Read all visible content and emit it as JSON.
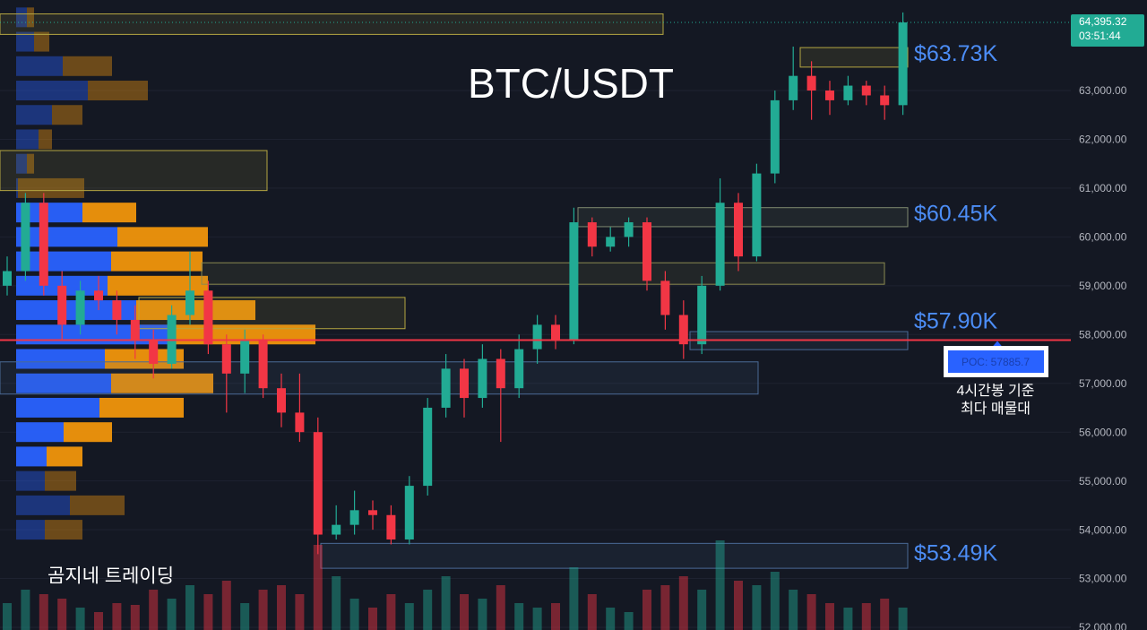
{
  "chart_data": {
    "type": "candlestick",
    "title": "BTC/USDT",
    "watermark": "곰지네 트레이딩",
    "annotation": "4시간봉 기준\n최다 매물대",
    "up_color": "#22ab94",
    "down_color": "#f23645",
    "ylim": [
      51945,
      64855
    ],
    "yticks": [
      {
        "value": 52000,
        "label": "52,000.00"
      },
      {
        "value": 53000,
        "label": "53,000.00"
      },
      {
        "value": 54000,
        "label": "54,000.00"
      },
      {
        "value": 55000,
        "label": "55,000.00"
      },
      {
        "value": 56000,
        "label": "56,000.00"
      },
      {
        "value": 57000,
        "label": "57,000.00"
      },
      {
        "value": 58000,
        "label": "58,000.00"
      },
      {
        "value": 59000,
        "label": "59,000.00"
      },
      {
        "value": 60000,
        "label": "60,000.00"
      },
      {
        "value": 61000,
        "label": "61,000.00"
      },
      {
        "value": 62000,
        "label": "62,000.00"
      },
      {
        "value": 63000,
        "label": "63,000.00"
      }
    ],
    "last_price": {
      "value": 64395.32,
      "label": "64,395.32"
    },
    "countdown": "03:51:44",
    "poc": {
      "value": 57885.7,
      "label": "POC: 57885.7"
    },
    "levels": [
      {
        "value": 63730,
        "label": "$63.73K"
      },
      {
        "value": 60450,
        "label": "$60.45K"
      },
      {
        "value": 57900,
        "label": "$57.90K"
      },
      {
        "value": 53490,
        "label": "$53.49K"
      }
    ],
    "zones": [
      {
        "low": 64150,
        "high": 64570,
        "color": "#b5a642"
      },
      {
        "low": 63480,
        "high": 63880,
        "color": "#b5a642"
      },
      {
        "low": 60950,
        "high": 61770,
        "color": "#b5a642"
      },
      {
        "low": 60210,
        "high": 60600,
        "color": "#7f8a70"
      },
      {
        "low": 59030,
        "high": 59470,
        "color": "#8a8a50"
      },
      {
        "low": 58120,
        "high": 58760,
        "color": "#b5a642"
      },
      {
        "low": 57690,
        "high": 58060,
        "color": "#4a6a96"
      },
      {
        "low": 56780,
        "high": 57440,
        "color": "#4a6a96"
      },
      {
        "low": 53210,
        "high": 53720,
        "color": "#4a6a96"
      }
    ],
    "open": [
      59000,
      59300,
      60700,
      59000,
      58200,
      58900,
      58700,
      58300,
      57900,
      57400,
      58400,
      58900,
      57800,
      57200,
      57900,
      56900,
      56400,
      56000,
      53900,
      54100,
      54400,
      54300,
      53800,
      54900,
      56500,
      57300,
      56700,
      57500,
      56900,
      57700,
      58200,
      57900,
      60300,
      59800,
      60000,
      60300,
      59100,
      58400,
      57800,
      59000,
      60700,
      59600,
      61300,
      62800,
      63300,
      63000,
      62800,
      63100,
      62900,
      62700
    ],
    "high": [
      59600,
      60900,
      60900,
      59300,
      59100,
      59200,
      58900,
      58600,
      58100,
      58600,
      59700,
      59100,
      58000,
      58100,
      58000,
      57200,
      57200,
      56300,
      54500,
      54800,
      54600,
      54500,
      55100,
      56700,
      57600,
      57500,
      57800,
      57700,
      58000,
      58400,
      58400,
      60600,
      60400,
      60200,
      60400,
      60400,
      59300,
      58700,
      59200,
      61200,
      60900,
      61500,
      63000,
      63900,
      63600,
      63200,
      63300,
      63200,
      63100,
      64600
    ],
    "low": [
      58800,
      59100,
      58800,
      57900,
      58000,
      58500,
      58000,
      57500,
      57100,
      57300,
      58200,
      57600,
      56400,
      56800,
      56700,
      56100,
      55800,
      53500,
      53800,
      53900,
      54000,
      53700,
      53700,
      54700,
      56300,
      56300,
      56500,
      55800,
      56700,
      57400,
      57700,
      57800,
      59600,
      59700,
      59800,
      58900,
      58100,
      57500,
      57600,
      58900,
      59300,
      59500,
      61100,
      62600,
      62400,
      62500,
      62700,
      62700,
      62400,
      62500
    ],
    "close": [
      59300,
      60700,
      59000,
      58200,
      58900,
      58700,
      58300,
      57900,
      57400,
      58400,
      58900,
      57800,
      57200,
      57900,
      56900,
      56400,
      56000,
      53900,
      54100,
      54400,
      54300,
      53800,
      54900,
      56500,
      57300,
      56700,
      57500,
      56900,
      57700,
      58200,
      57900,
      60300,
      59800,
      60000,
      60300,
      59100,
      58400,
      57800,
      59000,
      60700,
      59600,
      61300,
      62800,
      63300,
      63000,
      62800,
      63100,
      62900,
      62700,
      64395.32
    ],
    "volume": [
      30,
      45,
      40,
      35,
      25,
      20,
      30,
      28,
      45,
      35,
      50,
      40,
      55,
      30,
      45,
      50,
      40,
      95,
      60,
      35,
      25,
      40,
      30,
      45,
      60,
      40,
      35,
      50,
      30,
      25,
      30,
      70,
      40,
      25,
      20,
      45,
      50,
      60,
      45,
      100,
      55,
      50,
      65,
      45,
      40,
      30,
      25,
      30,
      35,
      25
    ],
    "volume_lim": [
      0,
      100
    ],
    "profile": {
      "levels": [
        64500,
        64000,
        63500,
        63000,
        62500,
        62000,
        61500,
        61000,
        60500,
        60000,
        59500,
        59000,
        58500,
        58000,
        57500,
        57000,
        56500,
        56000,
        55500,
        55000,
        54500,
        54000
      ],
      "buy": [
        12,
        20,
        52,
        80,
        40,
        25,
        12,
        2,
        74,
        113,
        106,
        102,
        134,
        172,
        99,
        106,
        93,
        53,
        34,
        32,
        60,
        32
      ],
      "sell": [
        8,
        17,
        55,
        67,
        34,
        15,
        8,
        74,
        60,
        101,
        102,
        112,
        133,
        162,
        88,
        114,
        94,
        54,
        40,
        35,
        61,
        42
      ],
      "xlim": [
        0,
        400
      ],
      "value_area": [
        55500,
        60500
      ],
      "buy_color": "#2962ff",
      "sell_color": "#f0950c"
    }
  }
}
